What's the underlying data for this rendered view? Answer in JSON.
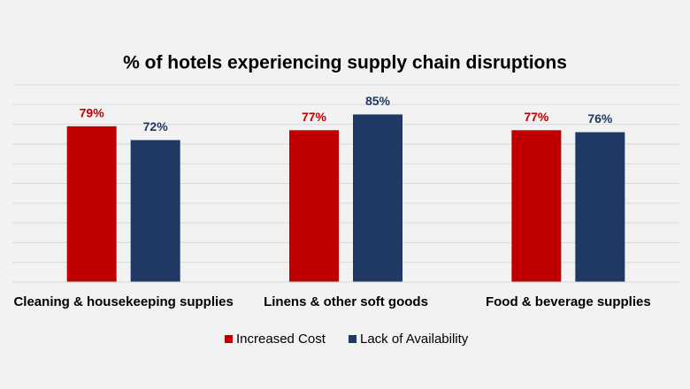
{
  "chart_data": {
    "type": "bar",
    "title": "% of hotels experiencing supply chain disruptions",
    "categories": [
      "Cleaning & housekeeping supplies",
      "Linens & other soft goods",
      "Food & beverage supplies"
    ],
    "series": [
      {
        "name": "Increased Cost",
        "color": "#c00000",
        "values": [
          79,
          77,
          77
        ],
        "value_labels": [
          "79%",
          "77%",
          "77%"
        ]
      },
      {
        "name": "Lack of Availability",
        "color": "#1f3864",
        "values": [
          72,
          85,
          76
        ],
        "value_labels": [
          "72%",
          "85%",
          "76%"
        ]
      }
    ],
    "ylim": [
      0,
      100
    ],
    "yticks": [
      0,
      10,
      20,
      30,
      40,
      50,
      60,
      70,
      80,
      90,
      100
    ],
    "grid": true,
    "legend": "bottom"
  }
}
